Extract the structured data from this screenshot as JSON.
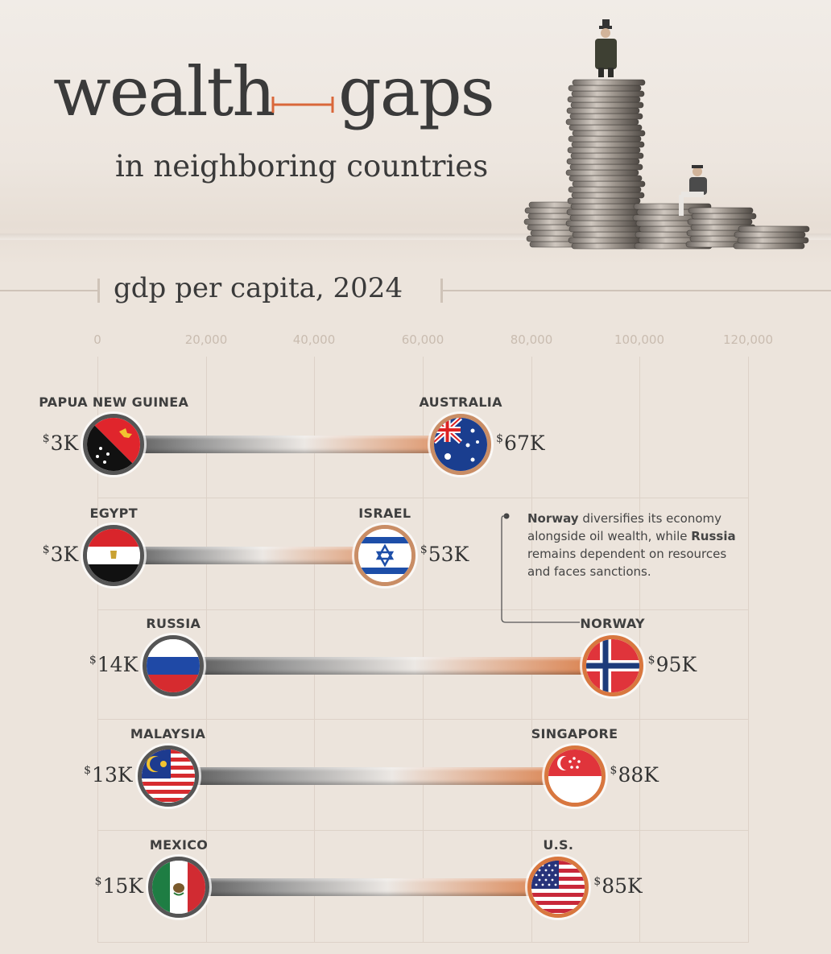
{
  "title": {
    "left": "wealth",
    "right": "gaps",
    "subtitle": "in neighboring countries"
  },
  "chart_title": "gdp per capita, 2024",
  "colors": {
    "poor": "#555555",
    "rich": "#d8773f",
    "background": "#ece4dc",
    "accent": "#d9673a"
  },
  "annotation": {
    "parts": [
      {
        "text": "Norway",
        "bold": true
      },
      {
        "text": " diversifies its economy alongside oil wealth, while ",
        "bold": false
      },
      {
        "text": "Russia",
        "bold": true
      },
      {
        "text": " remains dependent on resources and faces sanctions.",
        "bold": false
      }
    ]
  },
  "chart_data": {
    "type": "dumbbell",
    "title": "gdp per capita, 2024",
    "xlim": [
      0,
      120000
    ],
    "x_ticks": [
      "0",
      "20,000",
      "40,000",
      "60,000",
      "80,000",
      "100,000",
      "120,000"
    ],
    "grid": true,
    "pairs": [
      {
        "low": {
          "country": "PAPUA NEW GUINEA",
          "value": 3000,
          "label": "3K",
          "flag": "png-flag-icon"
        },
        "high": {
          "country": "AUSTRALIA",
          "value": 67000,
          "label": "67K",
          "flag": "australia-flag-icon"
        }
      },
      {
        "low": {
          "country": "EGYPT",
          "value": 3000,
          "label": "3K",
          "flag": "egypt-flag-icon"
        },
        "high": {
          "country": "ISRAEL",
          "value": 53000,
          "label": "53K",
          "flag": "israel-flag-icon"
        }
      },
      {
        "low": {
          "country": "RUSSIA",
          "value": 14000,
          "label": "14K",
          "flag": "russia-flag-icon"
        },
        "high": {
          "country": "NORWAY",
          "value": 95000,
          "label": "95K",
          "flag": "norway-flag-icon"
        }
      },
      {
        "low": {
          "country": "MALAYSIA",
          "value": 13000,
          "label": "13K",
          "flag": "malaysia-flag-icon"
        },
        "high": {
          "country": "SINGAPORE",
          "value": 88000,
          "label": "88K",
          "flag": "singapore-flag-icon"
        }
      },
      {
        "low": {
          "country": "MEXICO",
          "value": 15000,
          "label": "15K",
          "flag": "mexico-flag-icon"
        },
        "high": {
          "country": "U.S.",
          "value": 85000,
          "label": "85K",
          "flag": "us-flag-icon"
        }
      }
    ]
  }
}
